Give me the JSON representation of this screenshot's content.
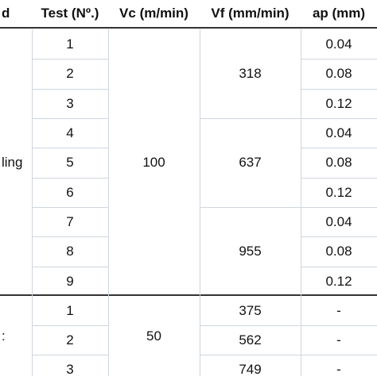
{
  "headers": {
    "col0": "d",
    "test": "Test (Nº.)",
    "vc": "Vc (m/min)",
    "vf": "Vf (mm/min)",
    "ap": "ap (mm)"
  },
  "groups": [
    {
      "label": "ling",
      "vc": "100",
      "tests": [
        "1",
        "2",
        "3",
        "4",
        "5",
        "6",
        "7",
        "8",
        "9"
      ],
      "vf": [
        "318",
        "637",
        "955"
      ],
      "ap": [
        "0.04",
        "0.08",
        "0.12",
        "0.04",
        "0.08",
        "0.12",
        "0.04",
        "0.08",
        "0.12"
      ]
    },
    {
      "label": ":",
      "vc": "50",
      "tests": [
        "1",
        "2",
        "3"
      ],
      "vf": [
        "375",
        "562",
        "749"
      ],
      "ap": [
        "-",
        "-",
        "-"
      ]
    }
  ]
}
